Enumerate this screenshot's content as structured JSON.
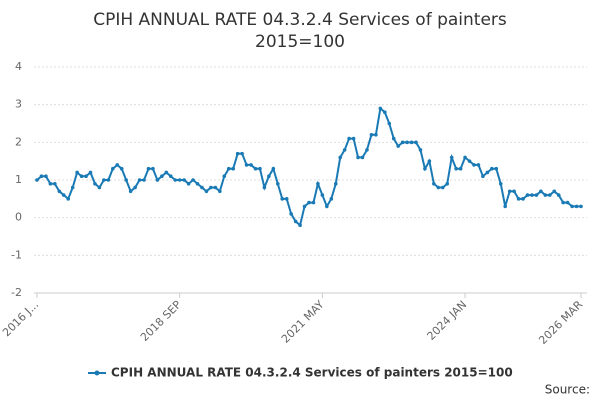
{
  "chart_data": {
    "type": "line",
    "title": [
      "CPIH ANNUAL RATE 04.3.2.4 Services of painters",
      "2015=100"
    ],
    "source": "Source:",
    "categories": [
      "2016 J...",
      null,
      null,
      null,
      null,
      null,
      null,
      null,
      null,
      null,
      null,
      null,
      null,
      null,
      null,
      null,
      null,
      null,
      null,
      null,
      null,
      null,
      null,
      null,
      null,
      null,
      null,
      null,
      null,
      null,
      null,
      null,
      "2018 SEP",
      null,
      null,
      null,
      null,
      null,
      null,
      null,
      null,
      null,
      null,
      null,
      null,
      null,
      null,
      null,
      null,
      null,
      null,
      null,
      null,
      null,
      null,
      null,
      null,
      null,
      null,
      null,
      null,
      null,
      null,
      null,
      "2021 MAY",
      null,
      null,
      null,
      null,
      null,
      null,
      null,
      null,
      null,
      null,
      null,
      null,
      null,
      null,
      null,
      null,
      null,
      null,
      null,
      null,
      null,
      null,
      null,
      null,
      null,
      null,
      null,
      null,
      null,
      null,
      null,
      "2024 JAN",
      null,
      null,
      null,
      null,
      null,
      null,
      null,
      null,
      null,
      null,
      null,
      null,
      null,
      null,
      null,
      null,
      null,
      null,
      null,
      null,
      null,
      null,
      null,
      null,
      null,
      "2026 MAR"
    ],
    "series": [
      {
        "name": "CPIH ANNUAL RATE 04.3.2.4 Services of painters 2015=100",
        "color": "#1a7ab5",
        "values": [
          1.0,
          1.1,
          1.1,
          0.9,
          0.9,
          0.7,
          0.6,
          0.5,
          0.8,
          1.2,
          1.1,
          1.1,
          1.2,
          0.9,
          0.8,
          1.0,
          1.0,
          1.3,
          1.4,
          1.3,
          1.0,
          0.7,
          0.8,
          1.0,
          1.0,
          1.3,
          1.3,
          1.0,
          1.1,
          1.2,
          1.1,
          1.0,
          1.0,
          1.0,
          0.9,
          1.0,
          0.9,
          0.8,
          0.7,
          0.8,
          0.8,
          0.7,
          1.1,
          1.3,
          1.3,
          1.7,
          1.7,
          1.4,
          1.4,
          1.3,
          1.3,
          0.8,
          1.1,
          1.3,
          0.9,
          0.5,
          0.5,
          0.1,
          -0.1,
          -0.2,
          0.3,
          0.4,
          0.4,
          0.9,
          0.6,
          0.3,
          0.5,
          0.9,
          1.6,
          1.8,
          2.1,
          2.1,
          1.6,
          1.6,
          1.8,
          2.2,
          2.2,
          2.9,
          2.8,
          2.5,
          2.1,
          1.9,
          2.0,
          2.0,
          2.0,
          2.0,
          1.8,
          1.3,
          1.5,
          0.9,
          0.8,
          0.8,
          0.9,
          1.6,
          1.3,
          1.3,
          1.6,
          1.5,
          1.4,
          1.4,
          1.1,
          1.2,
          1.3,
          1.3,
          0.9,
          0.3,
          0.7,
          0.7,
          0.5,
          0.5,
          0.6,
          0.6,
          0.6,
          0.7,
          0.6,
          0.6,
          0.7,
          0.6,
          0.4,
          0.4,
          0.3,
          0.3,
          0.3
        ]
      }
    ],
    "ylim": [
      -2,
      4
    ],
    "yticks": [
      -2,
      -1,
      0,
      1,
      2,
      3,
      4
    ],
    "grid": true
  }
}
